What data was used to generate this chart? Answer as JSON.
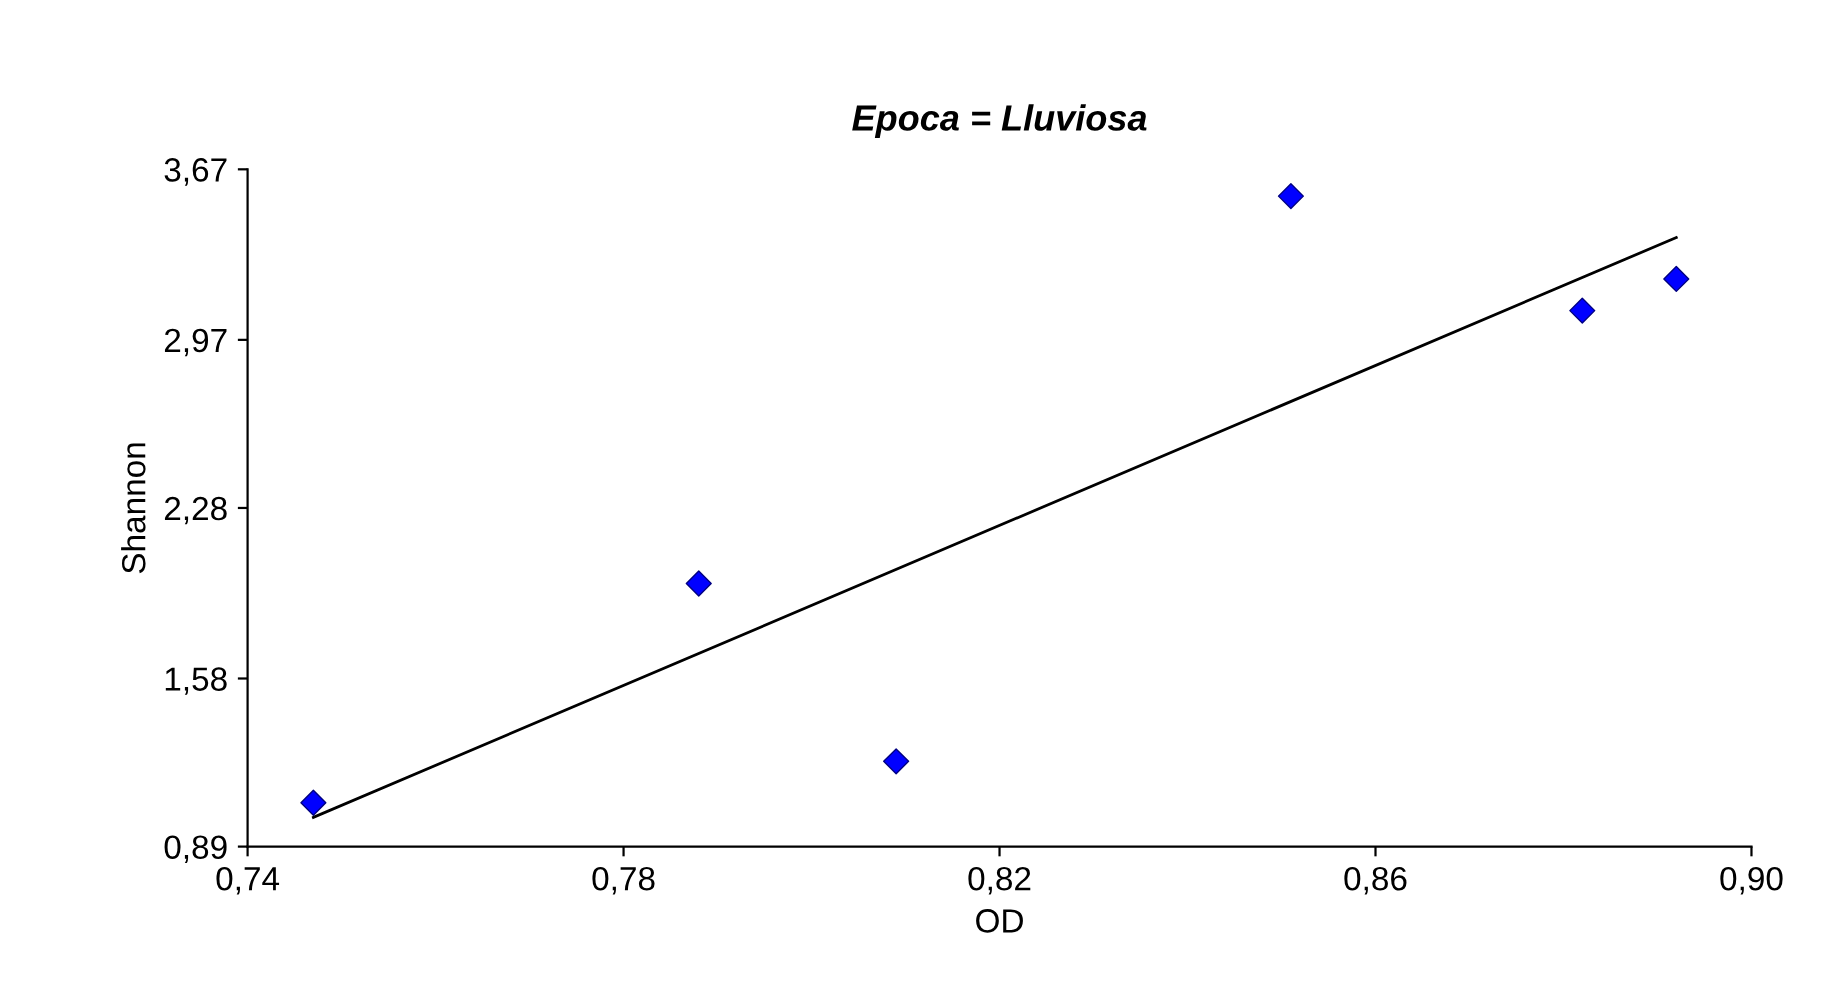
{
  "chart_data": {
    "type": "scatter",
    "title": "Epoca = Lluviosa",
    "xlabel": "OD",
    "ylabel": "Shannon",
    "xlim": [
      0.74,
      0.9
    ],
    "xticks": [
      {
        "value": 0.74,
        "label": "0,74"
      },
      {
        "value": 0.78,
        "label": "0,78"
      },
      {
        "value": 0.82,
        "label": "0,82"
      },
      {
        "value": 0.86,
        "label": "0,86"
      },
      {
        "value": 0.9,
        "label": "0,90"
      }
    ],
    "ylim": [
      0.89,
      3.67
    ],
    "yticks": [
      {
        "value": 0.89,
        "label": "0,89"
      },
      {
        "value": 1.58,
        "label": "1,58"
      },
      {
        "value": 2.28,
        "label": "2,28"
      },
      {
        "value": 2.97,
        "label": "2,97"
      },
      {
        "value": 3.67,
        "label": "3,67"
      }
    ],
    "grid": false,
    "series": [
      {
        "marker": "diamond",
        "color": "#0000ff",
        "x": [
          0.747,
          0.788,
          0.809,
          0.851,
          0.882,
          0.892
        ],
        "values": [
          1.07,
          1.97,
          1.24,
          3.56,
          3.09,
          3.22
        ]
      },
      {
        "type": "line",
        "marker": "none",
        "color": "#000000",
        "x": [
          0.747,
          0.892
        ],
        "values": [
          1.01,
          3.39
        ]
      }
    ]
  }
}
